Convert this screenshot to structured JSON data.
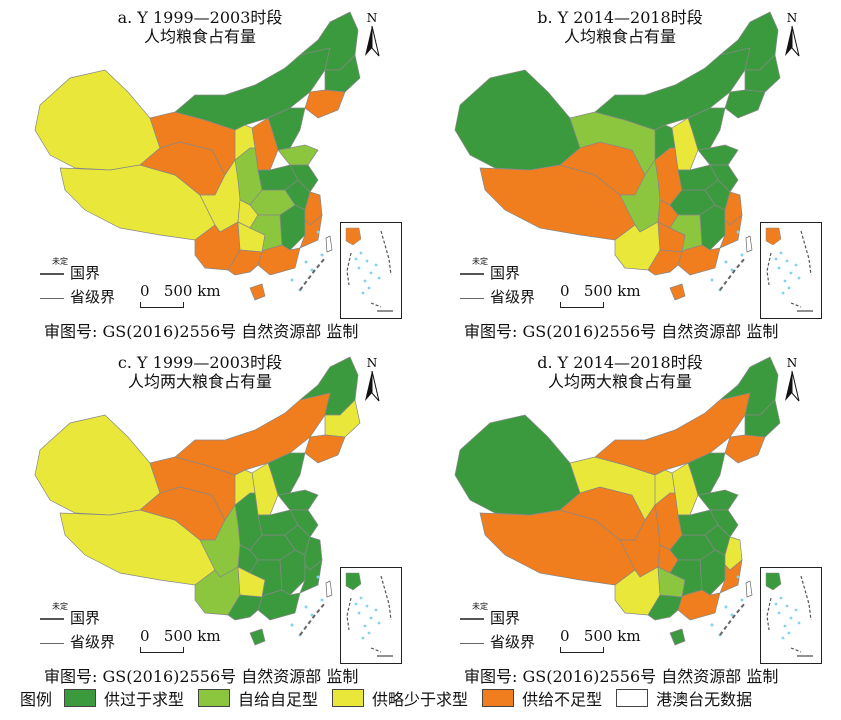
{
  "colors": {
    "surplus": "#3a9a3d",
    "self_sufficient": "#8cc63f",
    "slight_short": "#e8e73a",
    "deficit": "#f07d1e",
    "water": "#7fd2f0",
    "border": "#888888"
  },
  "panels": [
    {
      "id": "a",
      "title_line1": "a. Y 1999—2003时段",
      "title_line2": "人均粮食占有量",
      "regions": {
        "xinjiang": "slight_short",
        "tibet": "slight_short",
        "qinghai": "deficit",
        "gansu": "deficit",
        "inner_mongolia": "surplus",
        "heilongjiang": "surplus",
        "jilin": "surplus",
        "liaoning": "deficit",
        "hebei": "surplus",
        "shanxi": "deficit",
        "shaanxi": "self_sufficient",
        "ningxia": "slight_short",
        "sichuan": "slight_short",
        "yunnan": "deficit",
        "guizhou": "slight_short",
        "chongqing": "slight_short",
        "hubei": "self_sufficient",
        "hunan": "self_sufficient",
        "henan": "surplus",
        "shandong": "self_sufficient",
        "jiangsu": "surplus",
        "anhui": "surplus",
        "jiangxi": "surplus",
        "zhejiang": "deficit",
        "fujian": "deficit",
        "guangdong": "deficit",
        "guangxi": "deficit",
        "hainan": "deficit",
        "south_inset": "deficit"
      }
    },
    {
      "id": "b",
      "title_line1": "b. Y 2014—2018时段",
      "title_line2": "人均粮食占有量",
      "regions": {
        "xinjiang": "surplus",
        "tibet": "deficit",
        "qinghai": "deficit",
        "gansu": "self_sufficient",
        "inner_mongolia": "surplus",
        "heilongjiang": "surplus",
        "jilin": "surplus",
        "liaoning": "surplus",
        "hebei": "surplus",
        "shanxi": "slight_short",
        "shaanxi": "deficit",
        "ningxia": "surplus",
        "sichuan": "self_sufficient",
        "yunnan": "slight_short",
        "guizhou": "deficit",
        "chongqing": "deficit",
        "hubei": "surplus",
        "hunan": "self_sufficient",
        "henan": "surplus",
        "shandong": "surplus",
        "jiangsu": "surplus",
        "anhui": "surplus",
        "jiangxi": "surplus",
        "zhejiang": "deficit",
        "fujian": "deficit",
        "guangdong": "deficit",
        "guangxi": "deficit",
        "hainan": "deficit",
        "south_inset": "deficit"
      }
    },
    {
      "id": "c",
      "title_line1": "c. Y 1999—2003时段",
      "title_line2": "人均两大粮食占有量",
      "regions": {
        "xinjiang": "slight_short",
        "tibet": "slight_short",
        "qinghai": "deficit",
        "gansu": "deficit",
        "inner_mongolia": "deficit",
        "heilongjiang": "surplus",
        "jilin": "slight_short",
        "liaoning": "deficit",
        "hebei": "surplus",
        "shanxi": "slight_short",
        "shaanxi": "surplus",
        "ningxia": "slight_short",
        "sichuan": "self_sufficient",
        "yunnan": "self_sufficient",
        "guizhou": "slight_short",
        "chongqing": "surplus",
        "hubei": "surplus",
        "hunan": "surplus",
        "henan": "surplus",
        "shandong": "surplus",
        "jiangsu": "surplus",
        "anhui": "surplus",
        "jiangxi": "surplus",
        "zhejiang": "surplus",
        "fujian": "surplus",
        "guangdong": "surplus",
        "guangxi": "surplus",
        "hainan": "surplus",
        "south_inset": "surplus"
      }
    },
    {
      "id": "d",
      "title_line1": "d. Y 2014—2018时段",
      "title_line2": "人均两大粮食占有量",
      "regions": {
        "xinjiang": "surplus",
        "tibet": "deficit",
        "qinghai": "deficit",
        "gansu": "slight_short",
        "inner_mongolia": "deficit",
        "heilongjiang": "surplus",
        "jilin": "surplus",
        "liaoning": "deficit",
        "hebei": "surplus",
        "shanxi": "slight_short",
        "shaanxi": "deficit",
        "ningxia": "slight_short",
        "sichuan": "deficit",
        "yunnan": "slight_short",
        "guizhou": "self_sufficient",
        "chongqing": "deficit",
        "hubei": "surplus",
        "hunan": "surplus",
        "henan": "surplus",
        "shandong": "surplus",
        "jiangsu": "surplus",
        "anhui": "surplus",
        "jiangxi": "surplus",
        "zhejiang": "slight_short",
        "fujian": "deficit",
        "guangdong": "deficit",
        "guangxi": "surplus",
        "hainan": "surplus",
        "south_inset": "surplus"
      }
    }
  ],
  "map_labels": {
    "north": "N",
    "border": "国界",
    "border_tag": "未定",
    "province_border": "省级界",
    "scale": "0   500 km",
    "review_number": "审图号: GS(2016)2556号  自然资源部 监制"
  },
  "legend": {
    "title": "图例",
    "items": [
      {
        "key": "surplus",
        "label": "供过于求型"
      },
      {
        "key": "self_sufficient",
        "label": "自给自足型"
      },
      {
        "key": "slight_short",
        "label": "供略少于求型"
      },
      {
        "key": "deficit",
        "label": "供给不足型"
      },
      {
        "key": "no_data",
        "label": "港澳台无数据"
      }
    ]
  }
}
